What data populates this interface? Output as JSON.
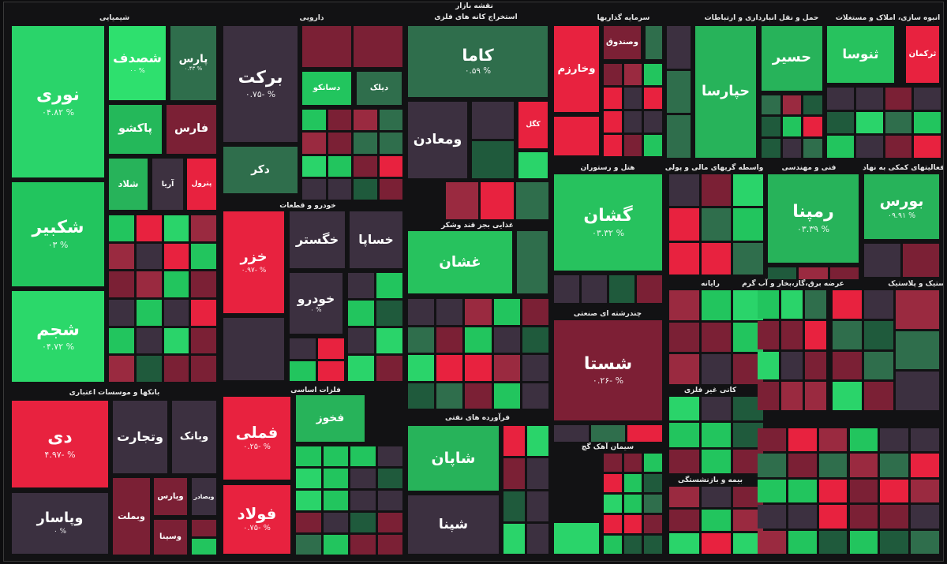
{
  "title": "نقشه بازار",
  "sectors": [
    {
      "title": "شیمیایی"
    },
    {
      "title": "دارویی"
    },
    {
      "title": "استخراج کانه های فلزی"
    },
    {
      "title": "سرمایه گذاریها"
    },
    {
      "title": "حمل و نقل انبارداری و ارتباطات"
    },
    {
      "title": "انبوه سازی، املاک و مستغلات"
    },
    {
      "title": "بانکها و موسسات اعتباری"
    },
    {
      "title": "خودرو و قطعات"
    },
    {
      "title": "فلزات اساسی"
    },
    {
      "title": "غذایی بجز قند وشکر"
    },
    {
      "title": "فرآورده های نفتی"
    },
    {
      "title": "هتل و رستوران"
    },
    {
      "title": "چندرشته ای صنعتی"
    },
    {
      "title": "سیمان آهک گچ"
    },
    {
      "title": "واسطه گریهای مالی و پولی"
    },
    {
      "title": "فنی و مهندسی"
    },
    {
      "title": "فعالیتهای کمکی به نهاد"
    },
    {
      "title": "رایانه"
    },
    {
      "title": "عرضه برق،گاز،بخار و آب گرم"
    },
    {
      "title": "لاستیک و پلاستیک"
    },
    {
      "title": "کانی غیر فلزی"
    },
    {
      "title": "بیمه و بازنشستگی"
    }
  ],
  "tiles": [
    {
      "label": "نوری",
      "change": "۰۴.۸۲ %",
      "color": "#2ad46a"
    },
    {
      "label": "شکبیر",
      "change": "۰۳ %",
      "color": "#22c55e"
    },
    {
      "label": "شجم",
      "change": "۰۴.۷۲ %",
      "color": "#2bd86a"
    },
    {
      "label": "شصدف",
      "change": "۰۰ %",
      "color": "#2ee06e"
    },
    {
      "label": "پارس",
      "change": "۰.۴۳ %",
      "color": "#2f6e4c"
    },
    {
      "label": "پاکشو",
      "color": "#24b85a"
    },
    {
      "label": "فارس",
      "color": "#7b2035"
    },
    {
      "label": "شلاد",
      "color": "#27b35a"
    },
    {
      "label": "آریا",
      "color": "#3d3140"
    },
    {
      "label": "پترول",
      "color": "#e8223f"
    },
    {
      "label": "دی",
      "change": "۴.۹۷- %",
      "color": "#e8223f"
    },
    {
      "label": "وپاسار",
      "change": "۰ %",
      "color": "#3b3040"
    },
    {
      "label": "وتجارت",
      "color": "#3c3040"
    },
    {
      "label": "وبانک",
      "color": "#3c3040"
    },
    {
      "label": "وبملت",
      "color": "#7b2035"
    },
    {
      "label": "وپارس",
      "color": "#7b2035"
    },
    {
      "label": "وبصادر",
      "color": "#3c3040"
    },
    {
      "label": "وسینا",
      "color": "#7b2035"
    },
    {
      "label": "برکت",
      "change": "۰.۷۵- %",
      "color": "#3c3040"
    },
    {
      "label": "دکر",
      "color": "#2f6e4c"
    },
    {
      "label": "دسانکو",
      "color": "#22c55e"
    },
    {
      "label": "دیلک",
      "color": "#2f6e4c"
    },
    {
      "label": "خزر",
      "change": "۰.۹۷- %",
      "color": "#e8223f"
    },
    {
      "label": "خگستر",
      "color": "#3c3040"
    },
    {
      "label": "خساپا",
      "color": "#3c3040"
    },
    {
      "label": "خودرو",
      "change": "۰ %",
      "color": "#3c3040"
    },
    {
      "label": "فملی",
      "change": "۰.۲۵- %",
      "color": "#e8223f"
    },
    {
      "label": "فولاد",
      "change": "۰.۷۵- %",
      "color": "#e8223f"
    },
    {
      "label": "فخوز",
      "color": "#27b35a"
    },
    {
      "label": "کاما",
      "change": "۰.۵۹ %",
      "color": "#2f6e4c"
    },
    {
      "label": "ومعادن",
      "color": "#3c3040"
    },
    {
      "label": "کگل",
      "color": "#e8223f"
    },
    {
      "label": "غشان",
      "color": "#27c25e"
    },
    {
      "label": "شاپان",
      "color": "#27b35a"
    },
    {
      "label": "شپنا",
      "color": "#3c3040"
    },
    {
      "label": "گشان",
      "change": "۰۳.۳۲ %",
      "color": "#27c25e"
    },
    {
      "label": "شستا",
      "change": "۰.۲۶- %",
      "color": "#7d1f35"
    },
    {
      "label": "حپارسا",
      "color": "#27b35a"
    },
    {
      "label": "حسیر",
      "color": "#27b35a"
    },
    {
      "label": "رمپنا",
      "change": "۰۳.۳۹ %",
      "color": "#27b35a"
    },
    {
      "label": "ثنوسا",
      "color": "#27c25e"
    },
    {
      "label": "ثرکمان",
      "color": "#e8223f"
    },
    {
      "label": "بورس",
      "change": "۰۹.۹۱ %",
      "color": "#27b35a"
    },
    {
      "label": "وخارزم",
      "color": "#e8223f"
    },
    {
      "label": "وصندوق",
      "color": "#7b2035"
    }
  ]
}
